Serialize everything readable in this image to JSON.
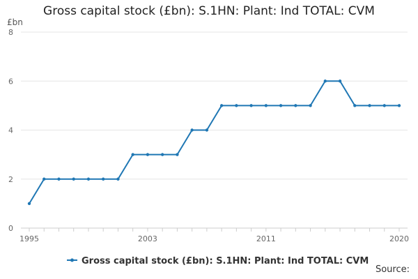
{
  "chart_data": {
    "type": "line",
    "title": "Gross capital stock (£bn): S.1HN: Plant: Ind TOTAL: CVM",
    "ylabel": "£bn",
    "xlabel": "",
    "x": [
      1995,
      1996,
      1997,
      1998,
      1999,
      2000,
      2001,
      2002,
      2003,
      2004,
      2005,
      2006,
      2007,
      2008,
      2009,
      2010,
      2011,
      2012,
      2013,
      2014,
      2015,
      2016,
      2017,
      2018,
      2019,
      2020
    ],
    "series": [
      {
        "name": "Gross capital stock (£bn): S.1HN: Plant: Ind TOTAL: CVM",
        "values": [
          1,
          2,
          2,
          2,
          2,
          2,
          2,
          3,
          3,
          3,
          3,
          4,
          4,
          5,
          5,
          5,
          5,
          5,
          5,
          5,
          6,
          6,
          5,
          5,
          5,
          5
        ],
        "color": "#1f77b4"
      }
    ],
    "xticks": [
      1995,
      2003,
      2011,
      2020
    ],
    "yticks": [
      0,
      2,
      4,
      6,
      8
    ],
    "ylim": [
      0,
      8
    ],
    "xlim": [
      1995,
      2020
    ],
    "grid": "horizontal",
    "legend": "bottom-center"
  },
  "footer": {
    "source_label": "Source:"
  }
}
